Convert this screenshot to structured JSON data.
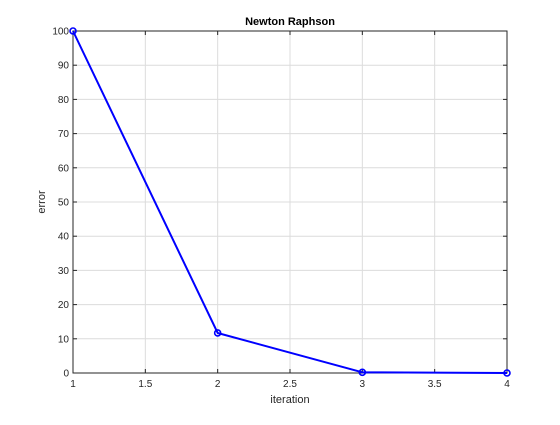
{
  "chart_data": {
    "type": "line",
    "title": "Newton Raphson",
    "xlabel": "iteration",
    "ylabel": "error",
    "x": [
      1,
      2,
      3,
      4
    ],
    "series": [
      {
        "values": [
          100,
          11.7,
          0.2,
          0.0
        ],
        "color": "#0000ff",
        "marker": "circle"
      }
    ],
    "xlim": [
      1,
      4
    ],
    "ylim": [
      0,
      100
    ],
    "xticks": [
      1,
      1.5,
      2,
      2.5,
      3,
      3.5,
      4
    ],
    "xtick_labels": [
      "1",
      "1.5",
      "2",
      "2.5",
      "3",
      "3.5",
      "4"
    ],
    "yticks": [
      0,
      10,
      20,
      30,
      40,
      50,
      60,
      70,
      80,
      90,
      100
    ],
    "ytick_labels": [
      "0",
      "10",
      "20",
      "30",
      "40",
      "50",
      "60",
      "70",
      "80",
      "90",
      "100"
    ],
    "grid": true,
    "legend": false
  }
}
